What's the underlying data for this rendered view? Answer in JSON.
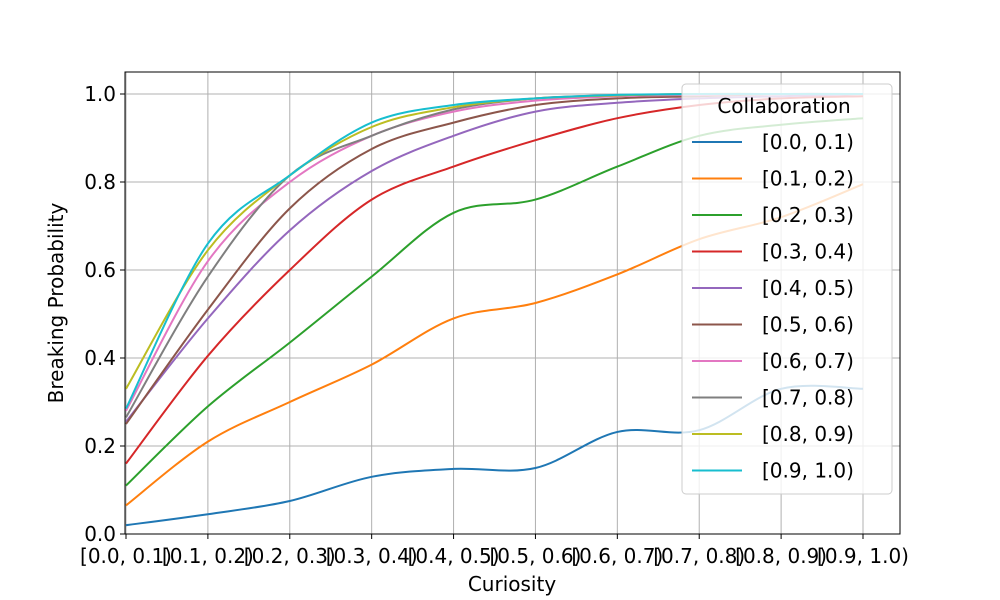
{
  "chart_data": {
    "type": "line",
    "title": "",
    "xlabel": "Curiosity",
    "ylabel": "Breaking Probability",
    "categories": [
      "[0.0, 0.1)",
      "[0.1, 0.2)",
      "[0.2, 0.3)",
      "[0.3, 0.4)",
      "[0.4, 0.5)",
      "[0.5, 0.6)",
      "[0.6, 0.7)",
      "[0.7, 0.8)",
      "[0.8, 0.9)",
      "[0.9, 1.0)"
    ],
    "ylim": [
      0,
      1.05
    ],
    "yticks": [
      0.0,
      0.2,
      0.4,
      0.6,
      0.8,
      1.0
    ],
    "ytick_labels": [
      "0.0",
      "0.2",
      "0.4",
      "0.6",
      "0.8",
      "1.0"
    ],
    "grid": true,
    "legend": {
      "title": "Collaboration",
      "placement": "upper-right"
    },
    "series": [
      {
        "name": "[0.0, 0.1)",
        "color": "#1f77b4",
        "values": [
          0.02,
          0.045,
          0.075,
          0.13,
          0.148,
          0.15,
          0.232,
          0.236,
          0.33,
          0.33
        ]
      },
      {
        "name": "[0.1, 0.2)",
        "color": "#ff7f0e",
        "values": [
          0.065,
          0.21,
          0.3,
          0.385,
          0.49,
          0.525,
          0.59,
          0.67,
          0.72,
          0.795
        ]
      },
      {
        "name": "[0.2, 0.3)",
        "color": "#2ca02c",
        "values": [
          0.11,
          0.29,
          0.435,
          0.585,
          0.73,
          0.76,
          0.835,
          0.905,
          0.93,
          0.945
        ]
      },
      {
        "name": "[0.3, 0.4)",
        "color": "#d62728",
        "values": [
          0.16,
          0.405,
          0.6,
          0.76,
          0.835,
          0.895,
          0.945,
          0.975,
          0.99,
          0.995
        ]
      },
      {
        "name": "[0.4, 0.5)",
        "color": "#9467bd",
        "values": [
          0.255,
          0.49,
          0.69,
          0.825,
          0.905,
          0.96,
          0.98,
          0.99,
          0.995,
          1.0
        ]
      },
      {
        "name": "[0.5, 0.6)",
        "color": "#8c564b",
        "values": [
          0.25,
          0.51,
          0.74,
          0.875,
          0.935,
          0.975,
          0.99,
          0.995,
          1.0,
          1.0
        ]
      },
      {
        "name": "[0.6, 0.7)",
        "color": "#e377c2",
        "values": [
          0.28,
          0.62,
          0.8,
          0.905,
          0.96,
          0.985,
          0.995,
          0.998,
          1.0,
          1.0
        ]
      },
      {
        "name": "[0.7, 0.8)",
        "color": "#7f7f7f",
        "values": [
          0.265,
          0.585,
          0.815,
          0.905,
          0.965,
          0.99,
          0.997,
          1.0,
          1.0,
          1.0
        ]
      },
      {
        "name": "[0.8, 0.9)",
        "color": "#bcbd22",
        "values": [
          0.33,
          0.645,
          0.815,
          0.925,
          0.97,
          0.99,
          0.997,
          1.0,
          1.0,
          1.0
        ]
      },
      {
        "name": "[0.9, 1.0)",
        "color": "#17becf",
        "values": [
          0.285,
          0.66,
          0.815,
          0.935,
          0.975,
          0.99,
          0.998,
          1.0,
          1.0,
          1.0
        ]
      }
    ]
  }
}
